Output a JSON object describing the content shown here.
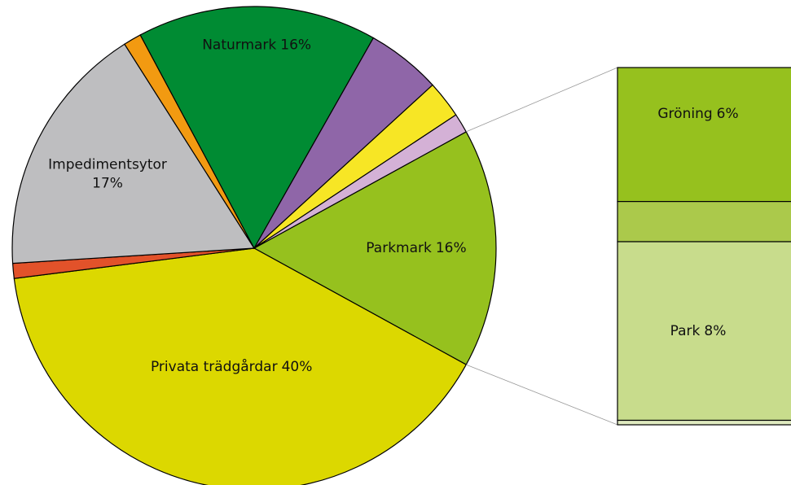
{
  "chart_data": {
    "type": "pie-of-bar",
    "categories": [
      "Parkmark",
      "Privata trädgårdar",
      null,
      "Impedimentsytor",
      null,
      "Naturmark",
      null,
      null,
      null
    ],
    "values": [
      16,
      40,
      1,
      17,
      1.2,
      16,
      5,
      2.5,
      1.3
    ],
    "value_labels": [
      "16%",
      "40%",
      null,
      "17%",
      null,
      "16%",
      null,
      null,
      null
    ],
    "colors": [
      "#96c11e",
      "#dcd800",
      "#e2522a",
      "#bebec0",
      "#f29a11",
      "#008b33",
      "#8f66a8",
      "#f7e625",
      "#d4b1d6"
    ],
    "breakdown": {
      "categories": [
        "Gröning",
        null,
        "Park",
        null
      ],
      "values": [
        6,
        1.8,
        8,
        0.2
      ],
      "value_labels": [
        "6%",
        null,
        "8%",
        null
      ],
      "colors": [
        "#96c11e",
        "#abc94b",
        "#c8dc8c",
        "#e0ebc0"
      ]
    }
  }
}
